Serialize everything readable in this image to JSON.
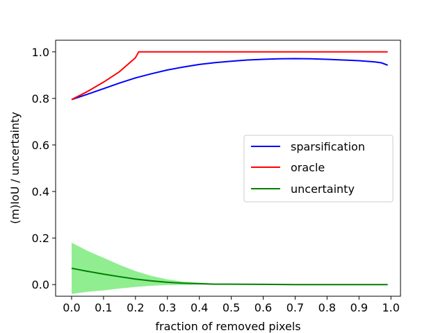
{
  "chart_data": {
    "type": "line",
    "title": "",
    "xlabel": "fraction of removed pixels",
    "ylabel": "(m)IoU / uncertainty",
    "xlim": [
      -0.05,
      1.03
    ],
    "ylim": [
      -0.05,
      1.05
    ],
    "xticks": [
      0.0,
      0.1,
      0.2,
      0.3,
      0.4,
      0.5,
      0.6,
      0.7,
      0.8,
      0.9,
      1.0
    ],
    "xtick_labels": [
      "0.0",
      "0.1",
      "0.2",
      "0.3",
      "0.4",
      "0.5",
      "0.6",
      "0.7",
      "0.8",
      "0.9",
      "1.0"
    ],
    "yticks": [
      0.0,
      0.2,
      0.4,
      0.6,
      0.8,
      1.0
    ],
    "ytick_labels": [
      "0.0",
      "0.2",
      "0.4",
      "0.6",
      "0.8",
      "1.0"
    ],
    "grid": false,
    "legend_position": "center-right",
    "series": [
      {
        "name": "sparsification",
        "color": "#0000ff",
        "x": [
          0.0,
          0.05,
          0.1,
          0.15,
          0.2,
          0.25,
          0.3,
          0.35,
          0.4,
          0.45,
          0.5,
          0.55,
          0.6,
          0.65,
          0.7,
          0.75,
          0.8,
          0.85,
          0.9,
          0.95,
          0.97,
          0.99
        ],
        "y": [
          0.795,
          0.818,
          0.842,
          0.866,
          0.888,
          0.906,
          0.922,
          0.935,
          0.946,
          0.954,
          0.96,
          0.965,
          0.968,
          0.97,
          0.971,
          0.97,
          0.968,
          0.965,
          0.962,
          0.957,
          0.953,
          0.943
        ]
      },
      {
        "name": "oracle",
        "color": "#ff0000",
        "x": [
          0.0,
          0.05,
          0.1,
          0.15,
          0.2,
          0.21,
          0.99
        ],
        "y": [
          0.795,
          0.83,
          0.87,
          0.915,
          0.975,
          1.0,
          1.0
        ]
      },
      {
        "name": "uncertainty",
        "color": "#008000",
        "x": [
          0.0,
          0.05,
          0.1,
          0.15,
          0.2,
          0.25,
          0.3,
          0.35,
          0.4,
          0.45,
          0.5,
          0.6,
          0.7,
          0.8,
          0.9,
          0.99
        ],
        "y": [
          0.07,
          0.057,
          0.045,
          0.034,
          0.024,
          0.016,
          0.01,
          0.006,
          0.004,
          0.002,
          0.002,
          0.001,
          0.0,
          0.0,
          0.0,
          0.0
        ],
        "band_upper": [
          0.18,
          0.145,
          0.115,
          0.085,
          0.058,
          0.037,
          0.022,
          0.013,
          0.008,
          0.004,
          0.003,
          0.001,
          0.0,
          0.0,
          0.0,
          0.0
        ],
        "band_lower": [
          -0.04,
          -0.031,
          -0.025,
          -0.017,
          -0.01,
          -0.005,
          -0.002,
          -0.001,
          0.0,
          0.0,
          0.001,
          0.001,
          0.0,
          0.0,
          0.0,
          0.0
        ],
        "band_color": "#90ee90"
      }
    ]
  }
}
